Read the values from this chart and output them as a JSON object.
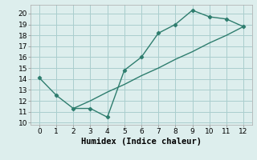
{
  "line1_x": [
    0,
    1,
    2,
    3,
    4,
    5,
    6,
    7,
    8,
    9,
    10,
    11,
    12
  ],
  "line1_y": [
    14.1,
    12.5,
    11.3,
    11.3,
    10.5,
    14.8,
    16.0,
    18.2,
    19.0,
    20.3,
    19.7,
    19.5,
    18.8
  ],
  "line2_x": [
    2,
    3,
    4,
    5,
    6,
    7,
    8,
    9,
    10,
    11,
    12
  ],
  "line2_y": [
    11.3,
    12.0,
    12.8,
    13.5,
    14.3,
    15.0,
    15.8,
    16.5,
    17.3,
    18.0,
    18.8
  ],
  "line_color": "#2e7d6e",
  "background_color": "#ddeeed",
  "grid_color": "#aacece",
  "xlabel": "Humidex (Indice chaleur)",
  "xlim": [
    -0.5,
    12.5
  ],
  "ylim": [
    9.8,
    20.8
  ],
  "yticks": [
    10,
    11,
    12,
    13,
    14,
    15,
    16,
    17,
    18,
    19,
    20
  ],
  "xticks": [
    0,
    1,
    2,
    3,
    4,
    5,
    6,
    7,
    8,
    9,
    10,
    11,
    12
  ],
  "xlabel_fontsize": 7.5,
  "tick_fontsize": 6.5
}
